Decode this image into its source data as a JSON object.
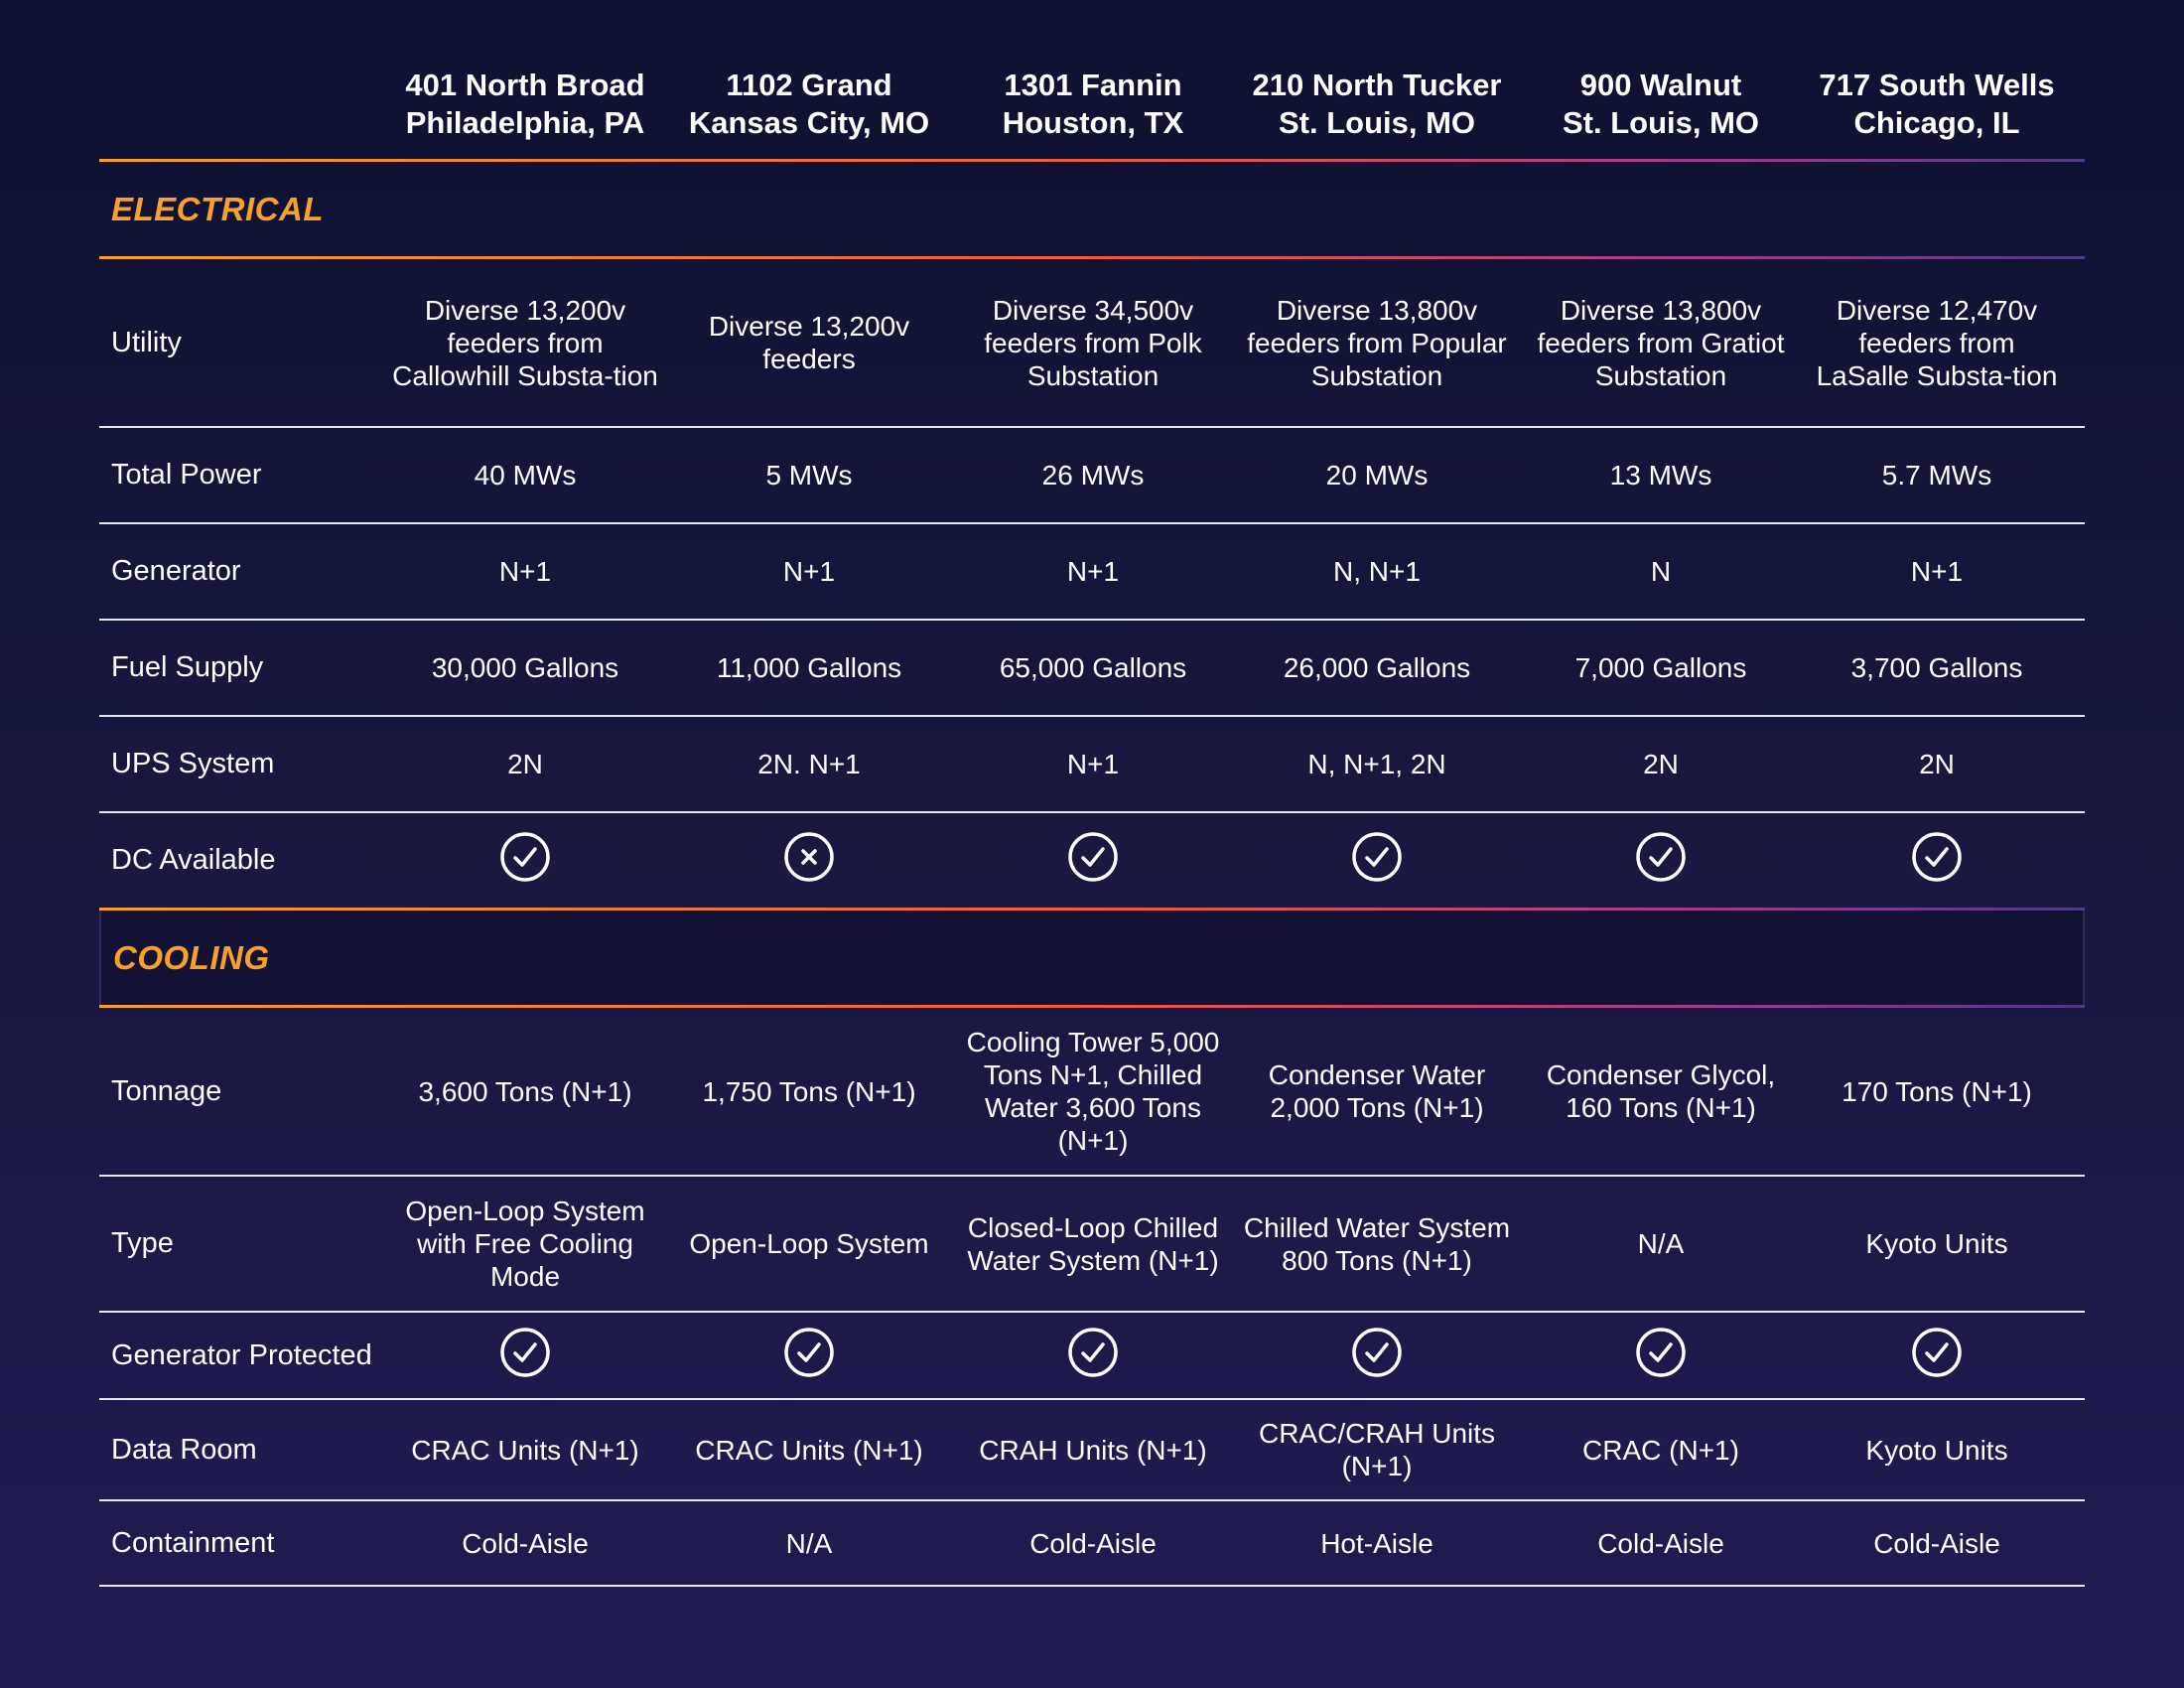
{
  "columns": [
    {
      "line1": "401 North Broad",
      "line2": "Philadelphia, PA"
    },
    {
      "line1": "1102 Grand",
      "line2": "Kansas City, MO"
    },
    {
      "line1": "1301 Fannin",
      "line2": "Houston, TX"
    },
    {
      "line1": "210 North Tucker",
      "line2": "St. Louis, MO"
    },
    {
      "line1": "900 Walnut",
      "line2": "St. Louis, MO"
    },
    {
      "line1": "717 South Wells",
      "line2": "Chicago, IL"
    }
  ],
  "electrical": {
    "title": "ELECTRICAL",
    "rows": [
      {
        "label": "Utility",
        "values": [
          "Diverse 13,200v feeders from Callowhill Substa-tion",
          "Diverse 13,200v feeders",
          "Diverse 34,500v feeders from Polk Substation",
          "Diverse 13,800v feeders from Popular Substation",
          "Diverse 13,800v feeders from Gratiot Substation",
          "Diverse 12,470v feeders from LaSalle Substa-tion"
        ]
      },
      {
        "label": "Total Power",
        "values": [
          "40 MWs",
          "5 MWs",
          "26 MWs",
          "20 MWs",
          "13 MWs",
          "5.7 MWs"
        ]
      },
      {
        "label": "Generator",
        "values": [
          "N+1",
          "N+1",
          "N+1",
          "N, N+1",
          "N",
          "N+1"
        ]
      },
      {
        "label": "Fuel Supply",
        "values": [
          "30,000 Gallons",
          "11,000 Gallons",
          "65,000 Gallons",
          "26,000 Gallons",
          "7,000 Gallons",
          "3,700 Gallons"
        ]
      },
      {
        "label": "UPS System",
        "values": [
          "2N",
          "2N. N+1",
          "N+1",
          "N, N+1, 2N",
          "2N",
          "2N"
        ]
      },
      {
        "label": "DC Available",
        "icons": [
          "check-circle-icon",
          "x-circle-icon",
          "check-circle-icon",
          "check-circle-icon",
          "check-circle-icon",
          "check-circle-icon"
        ]
      }
    ]
  },
  "cooling": {
    "title": "COOLING",
    "rows": [
      {
        "label": "Tonnage",
        "values": [
          "3,600 Tons (N+1)",
          "1,750 Tons (N+1)",
          "Cooling Tower 5,000 Tons N+1, Chilled Water 3,600 Tons (N+1)",
          "Condenser Water 2,000 Tons (N+1)",
          "Condenser Glycol, 160 Tons (N+1)",
          "170 Tons (N+1)"
        ]
      },
      {
        "label": "Type",
        "values": [
          "Open-Loop System with Free Cooling Mode",
          "Open-Loop System",
          "Closed-Loop Chilled Water System (N+1)",
          "Chilled Water System 800 Tons (N+1)",
          "N/A",
          "Kyoto Units"
        ]
      },
      {
        "label": "Generator Protected",
        "icons": [
          "check-circle-icon",
          "check-circle-icon",
          "check-circle-icon",
          "check-circle-icon",
          "check-circle-icon",
          "check-circle-icon"
        ]
      },
      {
        "label": "Data Room",
        "values": [
          "CRAC Units (N+1)",
          "CRAC Units (N+1)",
          "CRAH Units (N+1)",
          "CRAC/CRAH Units (N+1)",
          "CRAC (N+1)",
          "Kyoto Units"
        ]
      },
      {
        "label": "Containment",
        "values": [
          "Cold-Aisle",
          "N/A",
          "Cold-Aisle",
          "Hot-Aisle",
          "Cold-Aisle",
          "Cold-Aisle"
        ]
      }
    ]
  }
}
